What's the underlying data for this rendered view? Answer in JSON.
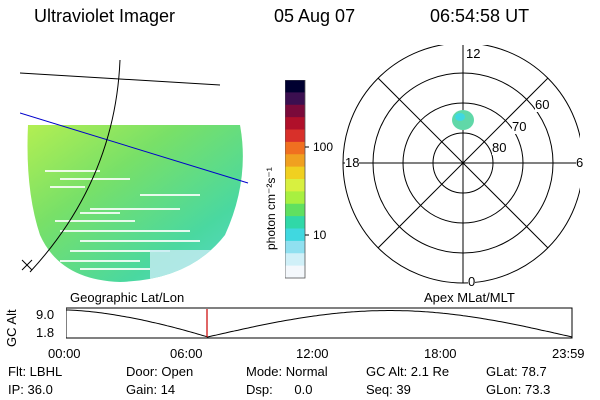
{
  "header": {
    "instrument": "Ultraviolet Imager",
    "date": "05 Aug 07",
    "time": "06:54:58 UT"
  },
  "colorbar": {
    "unit_label": "photon cm⁻²s⁻¹",
    "ticks": [
      "100",
      "10"
    ],
    "colors": [
      "#000030",
      "#3b0f50",
      "#7a0a3a",
      "#b0102a",
      "#d8302a",
      "#f07020",
      "#f0a020",
      "#f0d020",
      "#d8f040",
      "#a8f040",
      "#60e060",
      "#30d8a8",
      "#40d8e0",
      "#90e0f0",
      "#d0f0f8",
      "#f4f8fc"
    ]
  },
  "polar": {
    "mlt_labels": {
      "top": "12",
      "bottom": "0",
      "left": "18",
      "right": "6"
    },
    "lat_labels": [
      "60",
      "70",
      "80"
    ]
  },
  "timeline": {
    "left_label": "Geographic Lat/Lon",
    "right_label": "Apex MLat/MLT",
    "axis_title": "GC Alt",
    "y_ticks": [
      "9.0",
      "1.8"
    ],
    "x_ticks": [
      "00:00",
      "06:00",
      "12:00",
      "18:00",
      "23:59"
    ],
    "marker_color": "#cc0000"
  },
  "footer": {
    "flt": "Flt: LBHL",
    "ip": "IP: 36.0",
    "door": "Door: Open",
    "gain": "Gain: 14",
    "mode": "Mode: Normal",
    "dsp": "Dsp:      0.0",
    "gcalt": "GC Alt: 2.1 Re",
    "seq": "Seq: 39",
    "glat": "GLat: 78.7",
    "glon": "GLon: 73.3"
  }
}
